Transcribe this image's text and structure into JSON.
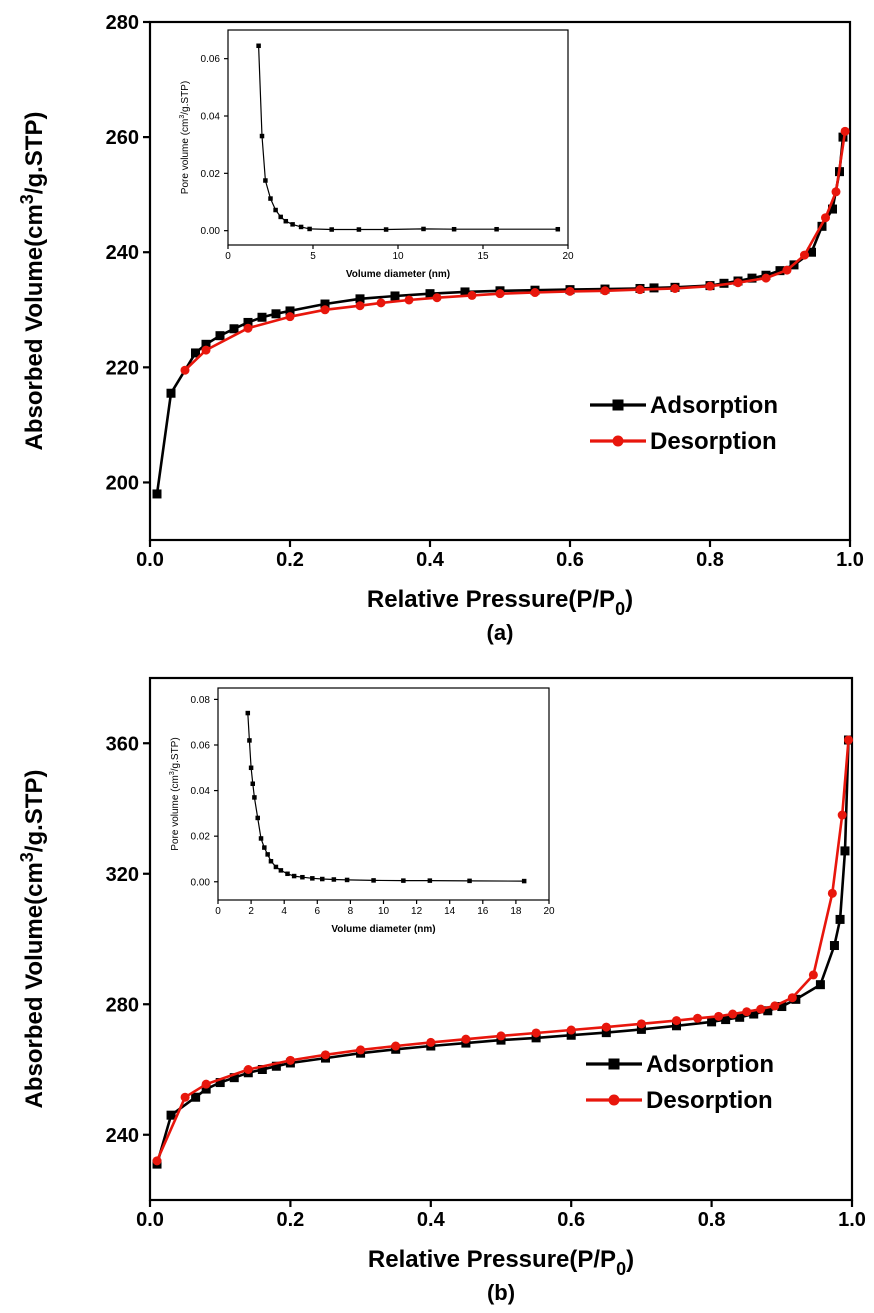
{
  "chart_data": [
    {
      "panel_label": "(a)",
      "type": "line",
      "xlabel": "Relative Pressure(P/P",
      "xlabel_sub": "0",
      "xlabel_tail": ")",
      "ylabel": "Absorbed Volume(cm",
      "ylabel_sup": "3",
      "ylabel_tail": "/g.STP)",
      "xlim": [
        0,
        1.0
      ],
      "ylim": [
        190,
        280
      ],
      "xticks": [
        "0.0",
        "0.2",
        "0.4",
        "0.6",
        "0.8",
        "1.0"
      ],
      "yticks": [
        "200",
        "220",
        "240",
        "260",
        "280"
      ],
      "grid": false,
      "legend_position": "right",
      "series": [
        {
          "name": "Adsorption",
          "color": "#000000",
          "marker": "square",
          "x": [
            0.01,
            0.03,
            0.065,
            0.08,
            0.1,
            0.12,
            0.14,
            0.16,
            0.18,
            0.2,
            0.25,
            0.3,
            0.35,
            0.4,
            0.45,
            0.5,
            0.55,
            0.6,
            0.65,
            0.7,
            0.72,
            0.75,
            0.8,
            0.82,
            0.84,
            0.86,
            0.88,
            0.9,
            0.92,
            0.945,
            0.96,
            0.975,
            0.985,
            0.99
          ],
          "y": [
            198,
            215.5,
            222.5,
            224,
            225.5,
            226.7,
            227.8,
            228.7,
            229.3,
            229.8,
            231,
            231.9,
            232.4,
            232.8,
            233.1,
            233.3,
            233.4,
            233.5,
            233.6,
            233.7,
            233.8,
            233.9,
            234.2,
            234.6,
            235,
            235.5,
            236,
            236.8,
            237.8,
            240,
            244.5,
            247.5,
            254,
            260
          ]
        },
        {
          "name": "Desorption",
          "color": "#e8160c",
          "marker": "circle",
          "x": [
            0.05,
            0.08,
            0.14,
            0.2,
            0.25,
            0.3,
            0.33,
            0.37,
            0.41,
            0.46,
            0.5,
            0.55,
            0.6,
            0.65,
            0.7,
            0.75,
            0.8,
            0.84,
            0.88,
            0.91,
            0.935,
            0.965,
            0.98,
            0.993
          ],
          "y": [
            219.5,
            223,
            226.8,
            228.8,
            230,
            230.7,
            231.2,
            231.7,
            232.1,
            232.5,
            232.8,
            233,
            233.2,
            233.3,
            233.5,
            233.7,
            234.1,
            234.7,
            235.5,
            236.9,
            239.5,
            246,
            250.5,
            261
          ]
        }
      ],
      "inset": {
        "type": "line",
        "xlabel": "Volume diameter (nm)",
        "ylabel": "Pore volume (cm",
        "ylabel_sup": "3",
        "ylabel_tail": "/g.STP)",
        "xlim": [
          0,
          20
        ],
        "ylim": [
          -0.005,
          0.07
        ],
        "xticks": [
          "0",
          "5",
          "10",
          "15",
          "20"
        ],
        "yticks": [
          "0.00",
          "0.02",
          "0.04",
          "0.06"
        ],
        "series": [
          {
            "color": "#000000",
            "marker": "square",
            "x": [
              1.8,
              2.0,
              2.2,
              2.5,
              2.8,
              3.1,
              3.4,
              3.8,
              4.3,
              4.8,
              6.1,
              7.7,
              9.3,
              11.5,
              13.3,
              15.8,
              19.4
            ],
            "y": [
              0.0645,
              0.033,
              0.0175,
              0.0112,
              0.0072,
              0.0048,
              0.0033,
              0.0022,
              0.0013,
              0.0006,
              0.0004,
              0.0004,
              0.0004,
              0.0006,
              0.0005,
              0.0005,
              0.0005
            ]
          }
        ]
      }
    },
    {
      "panel_label": "(b)",
      "type": "line",
      "xlabel": "Relative Pressure(P/P",
      "xlabel_sub": "0",
      "xlabel_tail": ")",
      "ylabel": "Absorbed Volume(cm",
      "ylabel_sup": "3",
      "ylabel_tail": "/g.STP)",
      "xlim": [
        0,
        1.0
      ],
      "ylim": [
        220,
        380
      ],
      "xticks": [
        "0.0",
        "0.2",
        "0.4",
        "0.6",
        "0.8",
        "1.0"
      ],
      "yticks": [
        "240",
        "280",
        "320",
        "360"
      ],
      "grid": false,
      "legend_position": "right",
      "series": [
        {
          "name": "Adsorption",
          "color": "#000000",
          "marker": "square",
          "x": [
            0.01,
            0.03,
            0.065,
            0.08,
            0.1,
            0.12,
            0.14,
            0.16,
            0.18,
            0.2,
            0.25,
            0.3,
            0.35,
            0.4,
            0.45,
            0.5,
            0.55,
            0.6,
            0.65,
            0.7,
            0.75,
            0.8,
            0.82,
            0.84,
            0.86,
            0.88,
            0.9,
            0.92,
            0.955,
            0.975,
            0.983,
            0.99,
            0.995
          ],
          "y": [
            231,
            246,
            251.5,
            254,
            256,
            257.5,
            259,
            260,
            261,
            262,
            263.5,
            265,
            266.2,
            267.2,
            268.1,
            269,
            269.7,
            270.5,
            271.3,
            272.3,
            273.4,
            274.6,
            275.3,
            276,
            277,
            278,
            279.3,
            281.5,
            286,
            298,
            306,
            327,
            361
          ]
        },
        {
          "name": "Desorption",
          "color": "#e8160c",
          "marker": "circle",
          "x": [
            0.01,
            0.05,
            0.08,
            0.14,
            0.2,
            0.25,
            0.3,
            0.35,
            0.4,
            0.45,
            0.5,
            0.55,
            0.6,
            0.65,
            0.7,
            0.75,
            0.78,
            0.81,
            0.83,
            0.85,
            0.87,
            0.89,
            0.915,
            0.945,
            0.972,
            0.986,
            0.995
          ],
          "y": [
            232,
            251.5,
            255.5,
            260,
            262.8,
            264.5,
            266,
            267.2,
            268.3,
            269.3,
            270.3,
            271.2,
            272.1,
            273,
            274,
            275,
            275.7,
            276.3,
            277,
            277.7,
            278.5,
            279.5,
            282,
            289,
            314,
            338,
            361
          ]
        }
      ],
      "inset": {
        "type": "line",
        "xlabel": "Volume diameter (nm)",
        "ylabel": "Pore volume (cm",
        "ylabel_sup": "3",
        "ylabel_tail": "/g.STP)",
        "xlim": [
          0,
          20
        ],
        "ylim": [
          -0.008,
          0.085
        ],
        "xticks": [
          "0",
          "2",
          "4",
          "6",
          "8",
          "10",
          "12",
          "14",
          "16",
          "18",
          "20"
        ],
        "yticks": [
          "0.00",
          "0.02",
          "0.04",
          "0.06",
          "0.08"
        ],
        "series": [
          {
            "color": "#000000",
            "marker": "square",
            "x": [
              1.8,
              1.9,
              2.0,
              2.1,
              2.2,
              2.4,
              2.6,
              2.8,
              3.0,
              3.2,
              3.5,
              3.8,
              4.2,
              4.6,
              5.1,
              5.7,
              6.3,
              7.0,
              7.8,
              9.4,
              11.2,
              12.8,
              15.2,
              18.5
            ],
            "y": [
              0.074,
              0.062,
              0.05,
              0.043,
              0.037,
              0.028,
              0.019,
              0.015,
              0.012,
              0.009,
              0.0065,
              0.005,
              0.0035,
              0.0025,
              0.002,
              0.0015,
              0.0012,
              0.001,
              0.0008,
              0.0006,
              0.0005,
              0.0005,
              0.0004,
              0.0003
            ]
          }
        ]
      }
    }
  ]
}
